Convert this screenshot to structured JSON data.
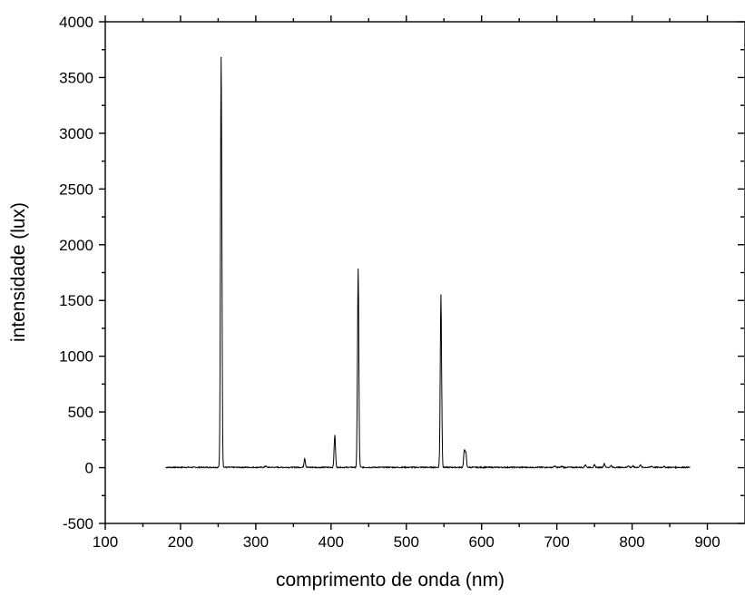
{
  "chart_data": {
    "type": "line",
    "title": "",
    "xlabel": "comprimento de onda (nm)",
    "ylabel": "intensidade (lux)",
    "xlim": [
      100,
      950
    ],
    "ylim": [
      -500,
      4000
    ],
    "x_ticks": [
      100,
      200,
      300,
      400,
      500,
      600,
      700,
      800,
      900
    ],
    "y_ticks": [
      -500,
      0,
      500,
      1000,
      1500,
      2000,
      2500,
      3000,
      3500,
      4000
    ],
    "x_tick_labels": [
      "100",
      "200",
      "300",
      "400",
      "500",
      "600",
      "700",
      "800",
      "900"
    ],
    "y_tick_labels": [
      "-500",
      "0",
      "500",
      "1000",
      "1500",
      "2000",
      "2500",
      "3000",
      "3500",
      "4000"
    ],
    "grid": false,
    "legend": "none",
    "line_color": "#000000",
    "x_range": [
      180,
      877
    ],
    "baseline": 3,
    "peaks": [
      {
        "x": 254,
        "y": 3680
      },
      {
        "x": 313,
        "y": 12
      },
      {
        "x": 365,
        "y": 80
      },
      {
        "x": 405,
        "y": 290
      },
      {
        "x": 436,
        "y": 1780
      },
      {
        "x": 546,
        "y": 1550
      },
      {
        "x": 577,
        "y": 140
      },
      {
        "x": 579,
        "y": 135
      },
      {
        "x": 697,
        "y": 12
      },
      {
        "x": 707,
        "y": 10
      },
      {
        "x": 738,
        "y": 25
      },
      {
        "x": 750,
        "y": 20
      },
      {
        "x": 763,
        "y": 35
      },
      {
        "x": 772,
        "y": 15
      },
      {
        "x": 795,
        "y": 15
      },
      {
        "x": 801,
        "y": 12
      },
      {
        "x": 811,
        "y": 25
      },
      {
        "x": 826,
        "y": 10
      },
      {
        "x": 842,
        "y": 8
      }
    ]
  }
}
